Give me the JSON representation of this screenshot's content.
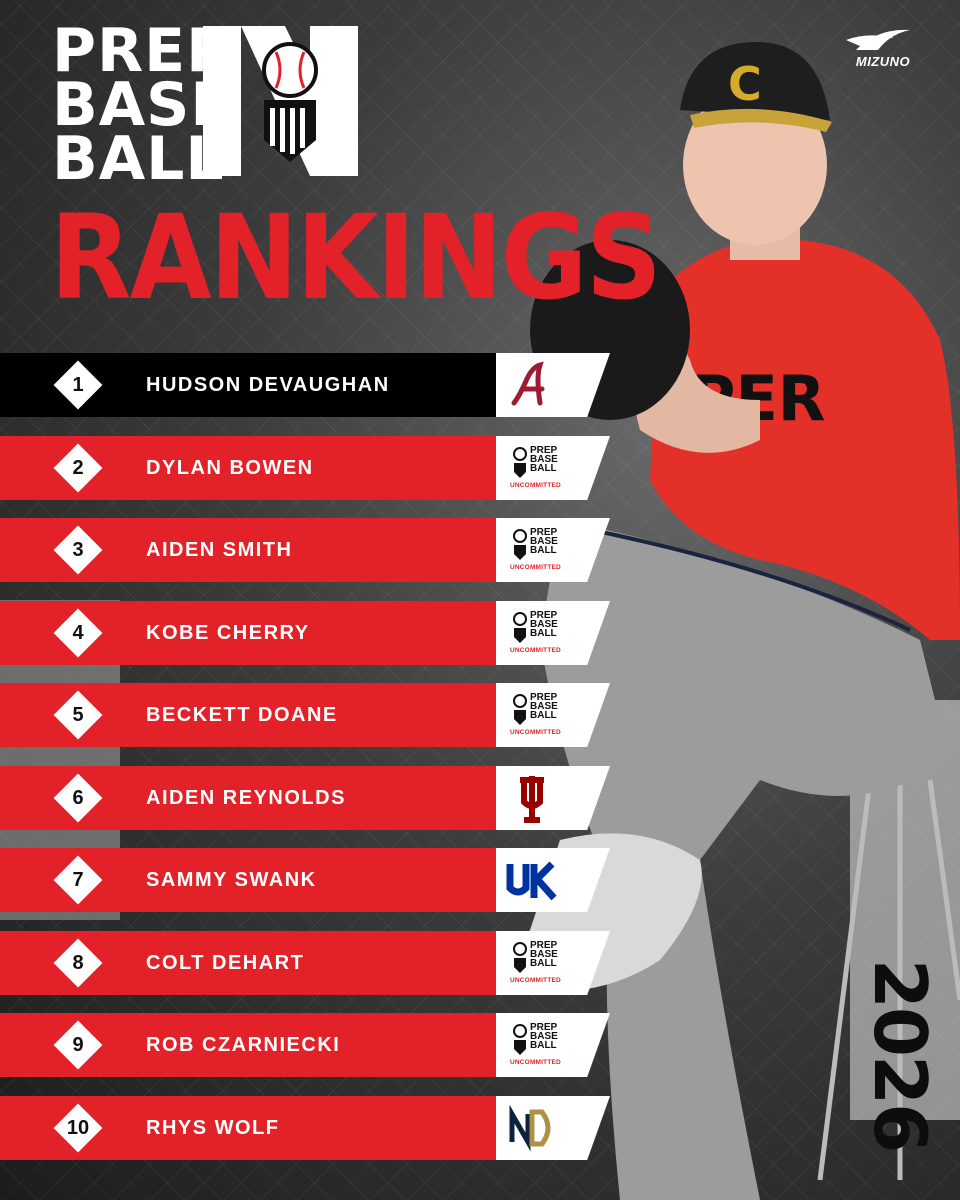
{
  "header": {
    "brand_lines": [
      "PREP",
      "BASE",
      "BALL"
    ],
    "state_mark": "IN",
    "title": "RANKINGS",
    "sponsor": "MIZUNO"
  },
  "class_year": "2026",
  "colors": {
    "accent_red": "#e32128",
    "top_row": "#000000",
    "text": "#ffffff"
  },
  "rankings": [
    {
      "rank": "1",
      "name": "HUDSON DEVAUGHAN",
      "commitment": "alabama-logo"
    },
    {
      "rank": "2",
      "name": "DYLAN BOWEN",
      "commitment": "pbr-uncommitted-logo",
      "logo_text": "PREP BASE BALL",
      "status": "UNCOMMITTED"
    },
    {
      "rank": "3",
      "name": "AIDEN SMITH",
      "commitment": "pbr-uncommitted-logo",
      "logo_text": "PREP BASE BALL",
      "status": "UNCOMMITTED"
    },
    {
      "rank": "4",
      "name": "KOBE CHERRY",
      "commitment": "pbr-uncommitted-logo",
      "logo_text": "PREP BASE BALL",
      "status": "UNCOMMITTED"
    },
    {
      "rank": "5",
      "name": "BECKETT DOANE",
      "commitment": "pbr-uncommitted-logo",
      "logo_text": "PREP BASE BALL",
      "status": "UNCOMMITTED"
    },
    {
      "rank": "6",
      "name": "AIDEN REYNOLDS",
      "commitment": "indiana-logo"
    },
    {
      "rank": "7",
      "name": "SAMMY SWANK",
      "commitment": "kentucky-logo"
    },
    {
      "rank": "8",
      "name": "COLT DEHART",
      "commitment": "pbr-uncommitted-logo",
      "logo_text": "PREP BASE BALL",
      "status": "UNCOMMITTED"
    },
    {
      "rank": "9",
      "name": "ROB CZARNIECKI",
      "commitment": "pbr-uncommitted-logo",
      "logo_text": "PREP BASE BALL",
      "status": "UNCOMMITTED"
    },
    {
      "rank": "10",
      "name": "RHYS WOLF",
      "commitment": "notre-dame-logo"
    }
  ]
}
